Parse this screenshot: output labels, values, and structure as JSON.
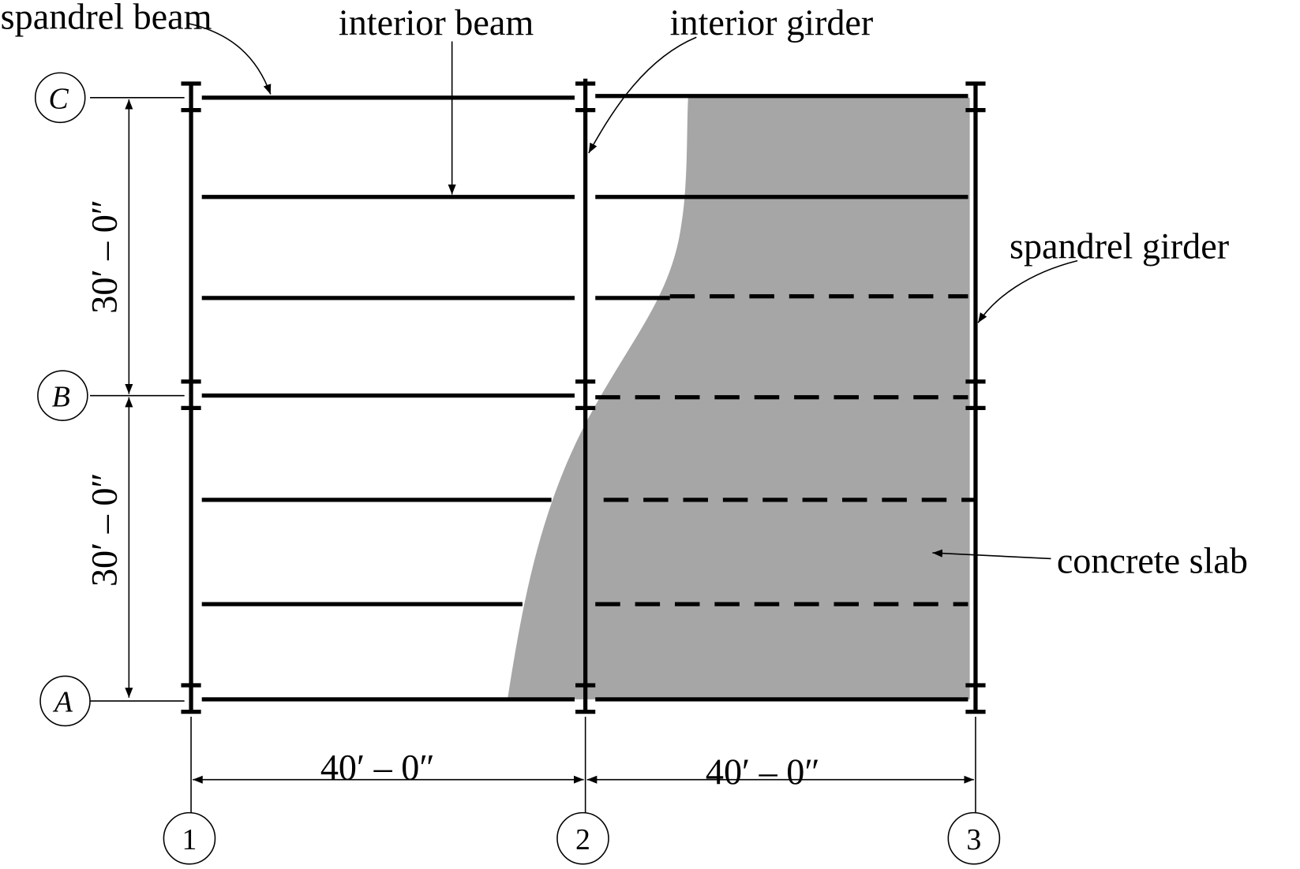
{
  "callouts": {
    "spandrel_beam": "spandrel beam",
    "interior_beam": "interior beam",
    "interior_girder": "interior girder",
    "spandrel_girder": "spandrel girder",
    "concrete_slab": "concrete slab"
  },
  "grid_rows": [
    "C",
    "B",
    "A"
  ],
  "grid_columns": [
    "1",
    "2",
    "3"
  ],
  "dimensions": {
    "vertical": [
      "30′ – 0″",
      "30′ – 0″"
    ],
    "horizontal": [
      "40′ – 0″",
      "40′ – 0″"
    ]
  }
}
